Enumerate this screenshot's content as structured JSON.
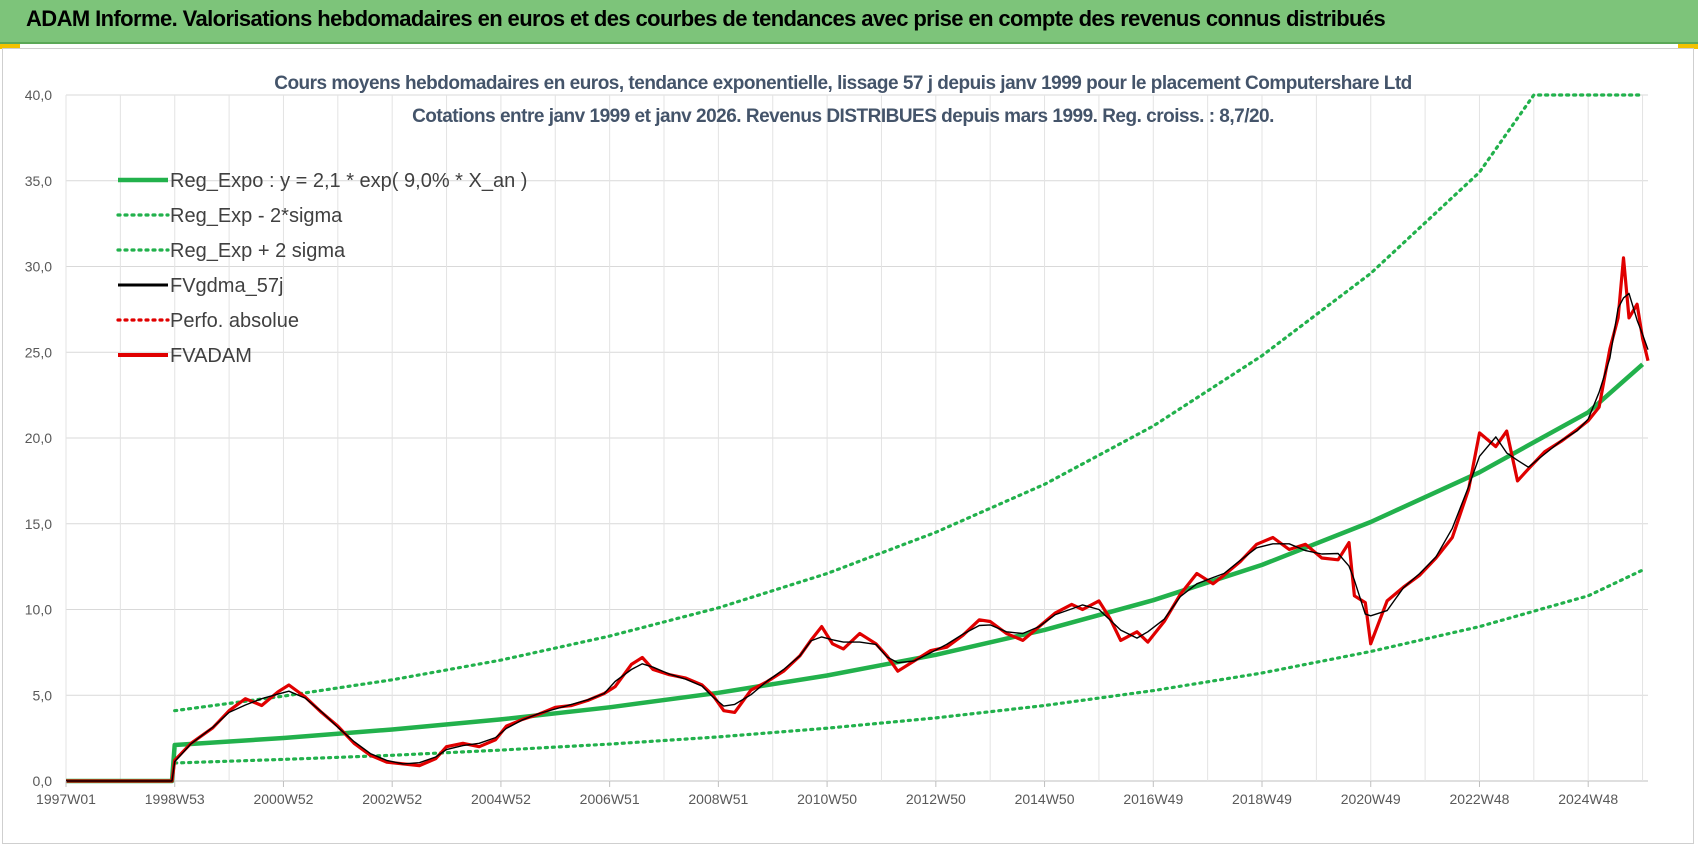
{
  "header": {
    "title": "ADAM Informe. Valorisations hebdomadaires en euros et des courbes de tendances avec prise en compte des revenus connus distribués"
  },
  "chart_data": {
    "type": "line",
    "title": "Cours moyens hebdomadaires en euros, tendance exponentielle, lissage 57 j depuis janv 1999  pour le placement Computershare Ltd",
    "subtitle": "Cotations entre janv 1999 et janv 2026. Revenus DISTRIBUES depuis mars 1999.  Reg. croiss. : 8,7/20.",
    "xlabel": "",
    "ylabel": "",
    "ylim": [
      0,
      40
    ],
    "y_ticks": [
      "0,0",
      "5,0",
      "10,0",
      "15,0",
      "20,0",
      "25,0",
      "30,0",
      "35,0",
      "40,0"
    ],
    "x_range": [
      1997.0,
      2026.1
    ],
    "x_ticks": [
      {
        "label": "1997W01",
        "x": 1997.0
      },
      {
        "label": "1998W53",
        "x": 1999.0
      },
      {
        "label": "2000W52",
        "x": 2001.0
      },
      {
        "label": "2002W52",
        "x": 2003.0
      },
      {
        "label": "2004W52",
        "x": 2005.0
      },
      {
        "label": "2006W51",
        "x": 2007.0
      },
      {
        "label": "2008W51",
        "x": 2009.0
      },
      {
        "label": "2010W50",
        "x": 2011.0
      },
      {
        "label": "2012W50",
        "x": 2013.0
      },
      {
        "label": "2014W50",
        "x": 2015.0
      },
      {
        "label": "2016W49",
        "x": 2017.0
      },
      {
        "label": "2018W49",
        "x": 2019.0
      },
      {
        "label": "2020W49",
        "x": 2021.0
      },
      {
        "label": "2022W48",
        "x": 2023.0
      },
      {
        "label": "2024W48",
        "x": 2025.0
      }
    ],
    "grid": true,
    "legend_position": "top-left",
    "series": [
      {
        "name": "Reg_Expo : y = 2,1 * exp( 9,0% *  X_an )",
        "key": "reg",
        "color": "#22b14c",
        "style": "solid",
        "points": [
          [
            1997.0,
            0
          ],
          [
            1998.95,
            0
          ],
          [
            1999.0,
            2.1
          ],
          [
            2001,
            2.51
          ],
          [
            2003,
            3.0
          ],
          [
            2005,
            3.59
          ],
          [
            2007,
            4.3
          ],
          [
            2009,
            5.14
          ],
          [
            2011,
            6.15
          ],
          [
            2013,
            7.36
          ],
          [
            2015,
            8.81
          ],
          [
            2017,
            10.54
          ],
          [
            2019,
            12.6
          ],
          [
            2021,
            15.1
          ],
          [
            2023,
            18.0
          ],
          [
            2025,
            21.5
          ],
          [
            2026.0,
            24.3
          ]
        ]
      },
      {
        "name": "Reg_Exp - 2*sigma",
        "key": "low",
        "color": "#22b14c",
        "style": "dotted",
        "points": [
          [
            1999.0,
            1.05
          ],
          [
            2001,
            1.26
          ],
          [
            2003,
            1.5
          ],
          [
            2005,
            1.8
          ],
          [
            2007,
            2.15
          ],
          [
            2009,
            2.57
          ],
          [
            2011,
            3.08
          ],
          [
            2013,
            3.68
          ],
          [
            2015,
            4.4
          ],
          [
            2017,
            5.27
          ],
          [
            2019,
            6.3
          ],
          [
            2021,
            7.55
          ],
          [
            2023,
            9.0
          ],
          [
            2025,
            10.8
          ],
          [
            2026.0,
            12.3
          ]
        ]
      },
      {
        "name": "Reg_Exp + 2 sigma",
        "key": "high",
        "color": "#22b14c",
        "style": "dotted",
        "points": [
          [
            1999.0,
            4.1
          ],
          [
            2001,
            4.95
          ],
          [
            2003,
            5.9
          ],
          [
            2005,
            7.05
          ],
          [
            2007,
            8.45
          ],
          [
            2009,
            10.1
          ],
          [
            2011,
            12.1
          ],
          [
            2013,
            14.5
          ],
          [
            2015,
            17.3
          ],
          [
            2017,
            20.7
          ],
          [
            2019,
            24.8
          ],
          [
            2021,
            29.6
          ],
          [
            2023,
            35.5
          ],
          [
            2024.0,
            40.0
          ],
          [
            2026.0,
            40.0
          ]
        ]
      },
      {
        "name": "FVgdma_57j",
        "key": "ma",
        "color": "#000000",
        "style": "solid",
        "points": []
      },
      {
        "name": "Perfo. absolue",
        "key": "perf",
        "color": "#e00000",
        "style": "dotted",
        "points": []
      },
      {
        "name": "FVADAM",
        "key": "adam",
        "color": "#e00000",
        "style": "solid",
        "points": [
          [
            1997.0,
            0
          ],
          [
            1998.95,
            0
          ],
          [
            1999.0,
            1.2
          ],
          [
            1999.3,
            2.2
          ],
          [
            1999.7,
            3.1
          ],
          [
            2000.0,
            4.1
          ],
          [
            2000.3,
            4.8
          ],
          [
            2000.6,
            4.4
          ],
          [
            2000.9,
            5.2
          ],
          [
            2001.1,
            5.6
          ],
          [
            2001.4,
            4.9
          ],
          [
            2001.7,
            4.0
          ],
          [
            2002.0,
            3.2
          ],
          [
            2002.3,
            2.2
          ],
          [
            2002.6,
            1.5
          ],
          [
            2002.9,
            1.1
          ],
          [
            2003.2,
            1.0
          ],
          [
            2003.5,
            0.9
          ],
          [
            2003.8,
            1.3
          ],
          [
            2004.0,
            2.0
          ],
          [
            2004.3,
            2.2
          ],
          [
            2004.6,
            2.0
          ],
          [
            2004.9,
            2.4
          ],
          [
            2005.1,
            3.2
          ],
          [
            2005.4,
            3.6
          ],
          [
            2005.7,
            3.9
          ],
          [
            2006.0,
            4.3
          ],
          [
            2006.3,
            4.4
          ],
          [
            2006.6,
            4.7
          ],
          [
            2006.9,
            5.1
          ],
          [
            2007.1,
            5.5
          ],
          [
            2007.4,
            6.8
          ],
          [
            2007.6,
            7.2
          ],
          [
            2007.8,
            6.5
          ],
          [
            2008.1,
            6.2
          ],
          [
            2008.4,
            6.0
          ],
          [
            2008.7,
            5.6
          ],
          [
            2008.9,
            5.0
          ],
          [
            2009.1,
            4.1
          ],
          [
            2009.3,
            4.0
          ],
          [
            2009.6,
            5.3
          ],
          [
            2009.9,
            5.8
          ],
          [
            2010.2,
            6.4
          ],
          [
            2010.5,
            7.3
          ],
          [
            2010.7,
            8.2
          ],
          [
            2010.9,
            9.0
          ],
          [
            2011.1,
            8.0
          ],
          [
            2011.3,
            7.7
          ],
          [
            2011.6,
            8.6
          ],
          [
            2011.9,
            8.0
          ],
          [
            2012.1,
            7.3
          ],
          [
            2012.3,
            6.4
          ],
          [
            2012.6,
            7.0
          ],
          [
            2012.9,
            7.6
          ],
          [
            2013.2,
            7.8
          ],
          [
            2013.5,
            8.5
          ],
          [
            2013.8,
            9.4
          ],
          [
            2014.0,
            9.3
          ],
          [
            2014.3,
            8.6
          ],
          [
            2014.6,
            8.2
          ],
          [
            2014.9,
            9.0
          ],
          [
            2015.2,
            9.8
          ],
          [
            2015.5,
            10.3
          ],
          [
            2015.7,
            10.0
          ],
          [
            2016.0,
            10.5
          ],
          [
            2016.2,
            9.5
          ],
          [
            2016.4,
            8.2
          ],
          [
            2016.7,
            8.7
          ],
          [
            2016.9,
            8.1
          ],
          [
            2017.2,
            9.3
          ],
          [
            2017.5,
            10.9
          ],
          [
            2017.8,
            12.1
          ],
          [
            2018.1,
            11.5
          ],
          [
            2018.3,
            12.0
          ],
          [
            2018.6,
            12.8
          ],
          [
            2018.9,
            13.8
          ],
          [
            2019.2,
            14.2
          ],
          [
            2019.5,
            13.5
          ],
          [
            2019.8,
            13.8
          ],
          [
            2020.1,
            13.0
          ],
          [
            2020.4,
            12.9
          ],
          [
            2020.6,
            13.9
          ],
          [
            2020.7,
            10.8
          ],
          [
            2020.9,
            10.4
          ],
          [
            2021.0,
            8.0
          ],
          [
            2021.3,
            10.5
          ],
          [
            2021.6,
            11.3
          ],
          [
            2021.9,
            12.0
          ],
          [
            2022.2,
            13.0
          ],
          [
            2022.5,
            14.2
          ],
          [
            2022.8,
            17.0
          ],
          [
            2023.0,
            20.3
          ],
          [
            2023.3,
            19.5
          ],
          [
            2023.5,
            20.4
          ],
          [
            2023.7,
            17.5
          ],
          [
            2023.9,
            18.2
          ],
          [
            2024.2,
            19.2
          ],
          [
            2024.5,
            19.8
          ],
          [
            2024.8,
            20.5
          ],
          [
            2025.0,
            21.0
          ],
          [
            2025.2,
            21.8
          ],
          [
            2025.4,
            25.2
          ],
          [
            2025.55,
            27.0
          ],
          [
            2025.65,
            30.5
          ],
          [
            2025.75,
            27.0
          ],
          [
            2025.9,
            27.8
          ],
          [
            2026.0,
            25.8
          ],
          [
            2026.1,
            24.5
          ]
        ]
      }
    ]
  }
}
